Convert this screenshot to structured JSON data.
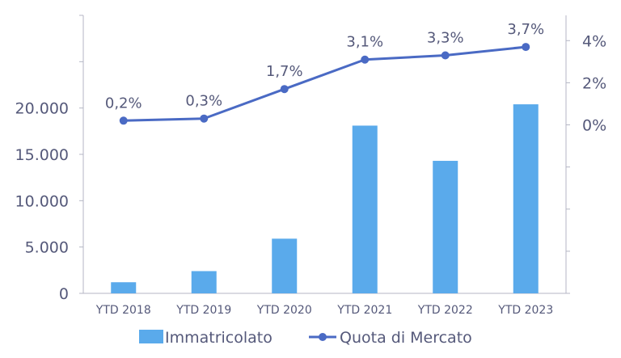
{
  "chart_data": {
    "type": "bar",
    "categories": [
      "YTD 2018",
      "YTD 2019",
      "YTD 2020",
      "YTD 2021",
      "YTD 2022",
      "YTD 2023"
    ],
    "series": [
      {
        "name": "Immatricolato",
        "type": "bar",
        "axis": "left",
        "values": [
          1200,
          2400,
          5900,
          18100,
          14300,
          20400
        ],
        "color": "#5aaaeb"
      },
      {
        "name": "Quota di Mercato",
        "type": "line",
        "axis": "right",
        "values": [
          0.2,
          0.3,
          1.7,
          3.1,
          3.3,
          3.7
        ],
        "labels": [
          "0,2%",
          "0,3%",
          "1,7%",
          "3,1%",
          "3,3%",
          "3,7%"
        ],
        "color": "#4a6ac4"
      }
    ],
    "y_left": {
      "ticks": [
        0,
        5000,
        10000,
        15000,
        20000
      ],
      "tick_labels": [
        "0",
        "5.000",
        "10.000",
        "15.000",
        "20.000"
      ],
      "range": [
        0,
        30000
      ]
    },
    "y_right": {
      "ticks": [
        0,
        2,
        4
      ],
      "tick_labels": [
        "0%",
        "2%",
        "4%"
      ],
      "range": [
        -8,
        5.2
      ]
    },
    "legend": {
      "position": "bottom",
      "entries": [
        "Immatricolato",
        "Quota di Mercato"
      ]
    },
    "grid": false,
    "title": "",
    "xlabel": "",
    "ylabel": ""
  }
}
